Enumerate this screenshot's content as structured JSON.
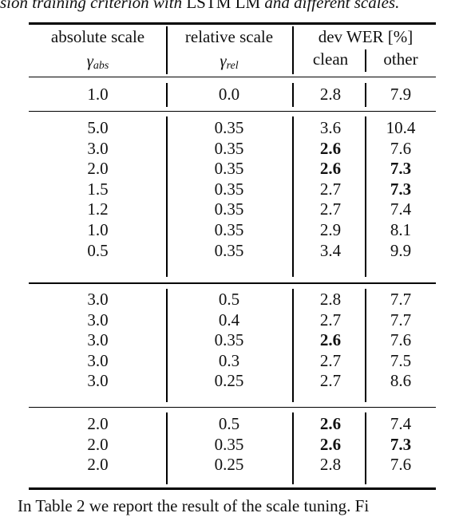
{
  "caption": {
    "prefix": "sion training criterion with ",
    "lstm": "LSTM LM",
    "suffix": " and different scales."
  },
  "headers": {
    "abs_title": "absolute scale",
    "abs_symbol": "γ",
    "abs_sub": "abs",
    "rel_title": "relative scale",
    "rel_symbol": "γ",
    "rel_sub": "rel",
    "wer_title": "dev WER [%]",
    "clean": "clean",
    "other": "other"
  },
  "groups": [
    [
      {
        "abs": "1.0",
        "rel": "0.0",
        "clean": "2.8",
        "other": "7.9",
        "clean_bold": false,
        "other_bold": false
      }
    ],
    [
      {
        "abs": "5.0",
        "rel": "0.35",
        "clean": "3.6",
        "other": "10.4",
        "clean_bold": false,
        "other_bold": false
      },
      {
        "abs": "3.0",
        "rel": "0.35",
        "clean": "2.6",
        "other": "7.6",
        "clean_bold": true,
        "other_bold": false
      },
      {
        "abs": "2.0",
        "rel": "0.35",
        "clean": "2.6",
        "other": "7.3",
        "clean_bold": true,
        "other_bold": true
      },
      {
        "abs": "1.5",
        "rel": "0.35",
        "clean": "2.7",
        "other": "7.3",
        "clean_bold": false,
        "other_bold": true
      },
      {
        "abs": "1.2",
        "rel": "0.35",
        "clean": "2.7",
        "other": "7.4",
        "clean_bold": false,
        "other_bold": false
      },
      {
        "abs": "1.0",
        "rel": "0.35",
        "clean": "2.9",
        "other": "8.1",
        "clean_bold": false,
        "other_bold": false
      },
      {
        "abs": "0.5",
        "rel": "0.35",
        "clean": "3.4",
        "other": "9.9",
        "clean_bold": false,
        "other_bold": false
      }
    ],
    [
      {
        "abs": "3.0",
        "rel": "0.5",
        "clean": "2.8",
        "other": "7.7",
        "clean_bold": false,
        "other_bold": false
      },
      {
        "abs": "3.0",
        "rel": "0.4",
        "clean": "2.7",
        "other": "7.7",
        "clean_bold": false,
        "other_bold": false
      },
      {
        "abs": "3.0",
        "rel": "0.35",
        "clean": "2.6",
        "other": "7.6",
        "clean_bold": true,
        "other_bold": false
      },
      {
        "abs": "3.0",
        "rel": "0.3",
        "clean": "2.7",
        "other": "7.5",
        "clean_bold": false,
        "other_bold": false
      },
      {
        "abs": "3.0",
        "rel": "0.25",
        "clean": "2.7",
        "other": "8.6",
        "clean_bold": false,
        "other_bold": false
      }
    ],
    [
      {
        "abs": "2.0",
        "rel": "0.5",
        "clean": "2.6",
        "other": "7.4",
        "clean_bold": true,
        "other_bold": false
      },
      {
        "abs": "2.0",
        "rel": "0.35",
        "clean": "2.6",
        "other": "7.3",
        "clean_bold": true,
        "other_bold": true
      },
      {
        "abs": "2.0",
        "rel": "0.25",
        "clean": "2.8",
        "other": "7.6",
        "clean_bold": false,
        "other_bold": false
      }
    ]
  ],
  "footer": "In Table 2 we report the result of the scale tuning.  Fi"
}
